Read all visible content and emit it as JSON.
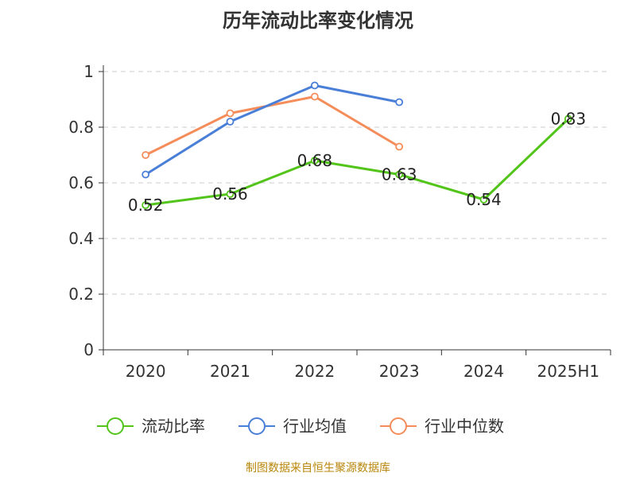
{
  "title": "历年流动比率变化情况",
  "source_note": "制图数据来自恒生聚源数据库",
  "chart_data": {
    "type": "line",
    "title": "历年流动比率变化情况",
    "categories": [
      "2020",
      "2021",
      "2022",
      "2023",
      "2024",
      "2025H1"
    ],
    "ylim": [
      0,
      1
    ],
    "yticks": [
      0,
      0.2,
      0.4,
      0.6,
      0.8,
      1
    ],
    "ytick_labels": [
      "0",
      "0.2",
      "0.4",
      "0.6",
      "0.8",
      "1"
    ],
    "grid": true,
    "legend_position": "bottom",
    "series": [
      {
        "name": "流动比率",
        "color": "#52c41a",
        "values": [
          0.52,
          0.56,
          0.68,
          0.63,
          0.54,
          0.83
        ],
        "data_labels": [
          "0.52",
          "0.56",
          "0.68",
          "0.63",
          "0.54",
          "0.83"
        ]
      },
      {
        "name": "行业均值",
        "color": "#4a7fd8",
        "values": [
          0.63,
          0.82,
          0.95,
          0.89,
          null,
          null
        ]
      },
      {
        "name": "行业中位数",
        "color": "#f58d5b",
        "values": [
          0.7,
          0.85,
          0.91,
          0.73,
          null,
          null
        ]
      }
    ]
  }
}
